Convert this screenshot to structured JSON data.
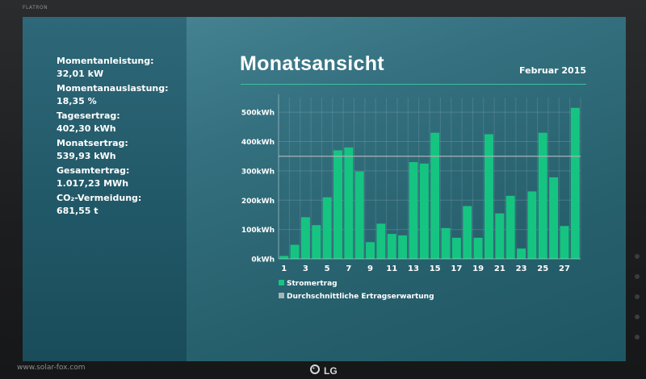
{
  "bezel": {
    "brand": "FLATRON",
    "url": "www.solar-fox.com",
    "logo": "LG"
  },
  "stats": [
    {
      "label": "Momentanleistung:",
      "value": "32,01 kW"
    },
    {
      "label": "Momentanauslastung:",
      "value": "18,35 %"
    },
    {
      "label": "Tagesertrag:",
      "value": "402,30 kWh"
    },
    {
      "label": "Monatsertrag:",
      "value": "539,93 kWh"
    },
    {
      "label": "Gesamtertrag:",
      "value": "1.017,23 MWh"
    },
    {
      "label": "CO₂-Vermeidung:",
      "value": "681,55 t"
    }
  ],
  "main": {
    "title": "Monatsansicht",
    "period": "Februar 2015"
  },
  "colors": {
    "bar": "#16c482",
    "average_line": "#a8b4b4",
    "accent_rule": "#3dbfa2"
  },
  "chart_data": {
    "type": "bar",
    "x": [
      1,
      2,
      3,
      4,
      5,
      6,
      7,
      8,
      9,
      10,
      11,
      12,
      13,
      14,
      15,
      16,
      17,
      18,
      19,
      20,
      21,
      22,
      23,
      24,
      25,
      26,
      27,
      28
    ],
    "xticks": [
      "1",
      "3",
      "5",
      "7",
      "9",
      "11",
      "13",
      "15",
      "17",
      "19",
      "21",
      "23",
      "25",
      "27"
    ],
    "yticks": [
      "0kWh",
      "100kWh",
      "200kWh",
      "300kWh",
      "400kWh",
      "500kWh"
    ],
    "ylim": [
      0,
      550
    ],
    "series": [
      {
        "name": "Stromertrag",
        "values": [
          10,
          48,
          142,
          115,
          210,
          370,
          380,
          298,
          57,
          120,
          85,
          80,
          330,
          325,
          430,
          105,
          72,
          180,
          72,
          425,
          155,
          215,
          35,
          230,
          430,
          278,
          112,
          515
        ]
      }
    ],
    "average": {
      "name": "Durchschnittliche Ertragserwartung",
      "value": 350
    },
    "legend": [
      "Stromertrag",
      "Durchschnittliche Ertragserwartung"
    ],
    "grid": true
  }
}
